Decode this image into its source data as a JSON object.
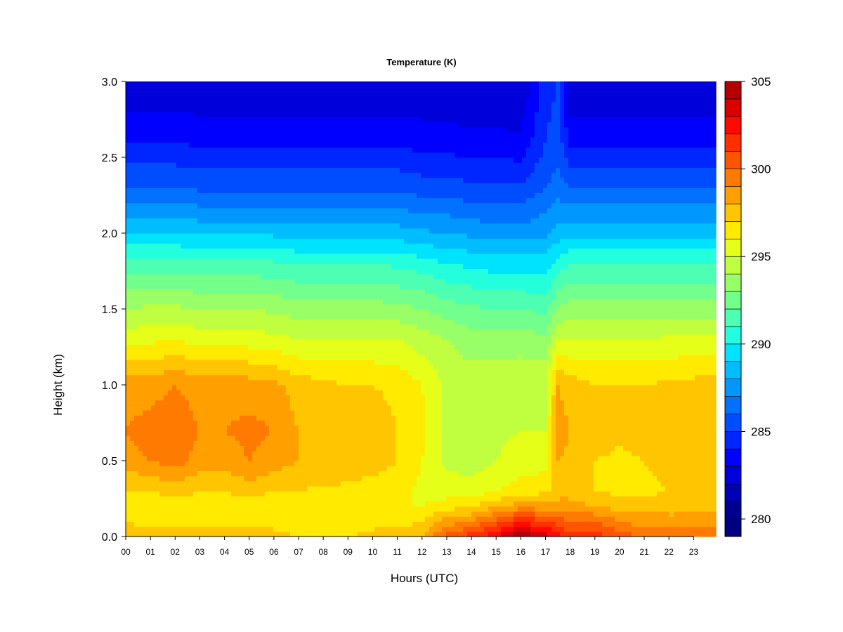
{
  "chart_data": {
    "type": "heatmap",
    "title": "Temperature (K)",
    "xlabel": "Hours (UTC)",
    "ylabel": "Height (km)",
    "xlim": [
      0,
      23.9
    ],
    "ylim": [
      0,
      3.0
    ],
    "x_ticks": [
      "00",
      "01",
      "02",
      "03",
      "04",
      "05",
      "06",
      "07",
      "08",
      "09",
      "10",
      "11",
      "12",
      "13",
      "14",
      "15",
      "16",
      "17",
      "18",
      "19",
      "20",
      "21",
      "22",
      "23"
    ],
    "y_ticks": [
      "0.0",
      "0.5",
      "1.0",
      "1.5",
      "2.0",
      "2.5",
      "3.0"
    ],
    "colorbar": {
      "min": 279,
      "max": 305,
      "step": 1,
      "tick_values": [
        280,
        285,
        290,
        295,
        300,
        305
      ],
      "tick_labels": [
        "280",
        "285",
        "290",
        "295",
        "300",
        "305"
      ],
      "colors": [
        "#000080",
        "#00008f",
        "#0000b4",
        "#0000da",
        "#0000ff",
        "#0026ff",
        "#004cff",
        "#0072ff",
        "#0097ff",
        "#00bdff",
        "#00e3ff",
        "#23ffdc",
        "#4cffb3",
        "#73ff8c",
        "#99ff66",
        "#c0ff3f",
        "#e6ff19",
        "#ffea00",
        "#ffc500",
        "#ff9f00",
        "#ff7a00",
        "#ff5400",
        "#ff2f00",
        "#ff0900",
        "#da0000",
        "#b40000",
        "#8f0000"
      ]
    },
    "heights_km": [
      0.0,
      0.1,
      0.2,
      0.3,
      0.5,
      0.7,
      1.0,
      1.3,
      1.5,
      1.8,
      2.0,
      2.3,
      2.6,
      3.0
    ],
    "profiles": [
      {
        "hour": 0,
        "temps": [
          298.0,
          297.0,
          296.5,
          297.0,
          298.5,
          299.0,
          298.5,
          295.5,
          294.0,
          291.5,
          289.0,
          286.0,
          284.0,
          282.0
        ]
      },
      {
        "hour": 1,
        "temps": [
          297.5,
          296.5,
          296.0,
          297.0,
          299.0,
          299.5,
          298.5,
          295.8,
          294.2,
          291.5,
          289.0,
          286.0,
          284.0,
          282.0
        ]
      },
      {
        "hour": 2,
        "temps": [
          297.5,
          296.5,
          296.5,
          297.5,
          299.5,
          299.8,
          299.0,
          296.0,
          294.2,
          291.5,
          289.0,
          286.0,
          284.0,
          282.0
        ]
      },
      {
        "hour": 3,
        "temps": [
          297.5,
          296.5,
          296.0,
          297.0,
          298.5,
          299.0,
          298.5,
          295.5,
          294.0,
          291.3,
          288.8,
          285.8,
          283.8,
          282.0
        ]
      },
      {
        "hour": 4,
        "temps": [
          297.5,
          296.5,
          296.0,
          297.0,
          298.5,
          299.0,
          298.5,
          295.5,
          294.0,
          291.3,
          288.8,
          285.8,
          283.8,
          282.0
        ]
      },
      {
        "hour": 5,
        "temps": [
          297.5,
          296.8,
          296.5,
          297.5,
          299.0,
          299.3,
          298.5,
          295.5,
          294.0,
          291.3,
          288.8,
          285.8,
          283.8,
          282.0
        ]
      },
      {
        "hour": 6,
        "temps": [
          297.5,
          296.5,
          296.0,
          297.0,
          298.5,
          299.0,
          298.3,
          295.3,
          293.8,
          291.2,
          288.8,
          285.8,
          283.8,
          282.0
        ]
      },
      {
        "hour": 7,
        "temps": [
          297.0,
          296.0,
          296.0,
          297.0,
          298.0,
          298.0,
          297.5,
          295.0,
          293.5,
          291.0,
          288.5,
          285.8,
          283.8,
          282.0
        ]
      },
      {
        "hour": 8,
        "temps": [
          297.0,
          296.0,
          296.0,
          296.8,
          297.8,
          298.0,
          297.3,
          295.0,
          293.5,
          291.0,
          288.5,
          285.8,
          283.8,
          282.0
        ]
      },
      {
        "hour": 9,
        "temps": [
          297.0,
          296.0,
          296.0,
          296.8,
          297.5,
          297.8,
          297.0,
          295.0,
          293.5,
          291.0,
          288.5,
          285.8,
          283.8,
          282.0
        ]
      },
      {
        "hour": 10,
        "temps": [
          297.5,
          296.5,
          296.0,
          296.5,
          297.5,
          297.5,
          297.0,
          295.0,
          293.5,
          291.0,
          288.5,
          285.8,
          283.8,
          282.0
        ]
      },
      {
        "hour": 11,
        "temps": [
          297.5,
          296.5,
          296.0,
          296.3,
          297.0,
          297.0,
          296.8,
          295.0,
          293.3,
          290.8,
          288.5,
          285.8,
          283.8,
          282.0
        ]
      },
      {
        "hour": 12,
        "temps": [
          298.0,
          297.0,
          296.0,
          295.8,
          296.0,
          296.2,
          296.0,
          294.5,
          293.0,
          290.5,
          288.2,
          285.5,
          283.6,
          282.0
        ]
      },
      {
        "hour": 13,
        "temps": [
          300.5,
          298.5,
          296.5,
          295.5,
          294.8,
          294.8,
          294.8,
          294.0,
          292.5,
          290.0,
          288.0,
          285.5,
          283.5,
          282.0
        ]
      },
      {
        "hour": 14,
        "temps": [
          301.5,
          299.0,
          297.0,
          295.5,
          294.5,
          294.5,
          294.5,
          293.5,
          292.2,
          289.8,
          287.8,
          285.2,
          283.3,
          282.0
        ]
      },
      {
        "hour": 15,
        "temps": [
          303.0,
          300.5,
          297.8,
          296.0,
          295.0,
          294.8,
          294.6,
          293.5,
          292.0,
          289.5,
          287.5,
          285.2,
          283.3,
          282.0
        ]
      },
      {
        "hour": 16,
        "temps": [
          305.0,
          302.0,
          298.5,
          296.5,
          295.5,
          295.0,
          294.8,
          293.5,
          292.0,
          289.5,
          287.5,
          285.2,
          283.2,
          282.0
        ]
      },
      {
        "hour": 17,
        "temps": [
          303.5,
          301.0,
          298.5,
          296.8,
          295.5,
          295.0,
          294.8,
          293.3,
          291.8,
          289.5,
          287.8,
          286.0,
          285.0,
          284.5
        ]
      },
      {
        "hour": 17.5,
        "temps": [
          302.5,
          300.5,
          298.5,
          297.5,
          298.0,
          298.5,
          298.0,
          295.0,
          293.0,
          290.5,
          288.5,
          286.5,
          285.5,
          285.0
        ]
      },
      {
        "hour": 18,
        "temps": [
          301.5,
          300.0,
          298.5,
          297.5,
          297.8,
          298.0,
          297.5,
          295.0,
          293.5,
          291.0,
          288.7,
          286.0,
          283.8,
          282.0
        ]
      },
      {
        "hour": 19,
        "temps": [
          301.5,
          300.0,
          298.0,
          297.0,
          297.0,
          297.5,
          297.0,
          295.0,
          293.5,
          291.0,
          288.7,
          286.0,
          283.8,
          282.0
        ]
      },
      {
        "hour": 20,
        "temps": [
          300.5,
          299.0,
          297.5,
          296.8,
          296.8,
          297.2,
          297.0,
          295.0,
          293.5,
          291.0,
          288.7,
          286.0,
          283.8,
          282.0
        ]
      },
      {
        "hour": 21,
        "temps": [
          300.0,
          298.5,
          297.5,
          296.8,
          297.0,
          297.5,
          297.0,
          295.0,
          293.5,
          291.0,
          288.7,
          286.0,
          283.8,
          282.0
        ]
      },
      {
        "hour": 22,
        "temps": [
          300.0,
          298.5,
          297.5,
          297.0,
          297.3,
          297.8,
          297.2,
          295.2,
          293.5,
          291.0,
          288.7,
          286.0,
          283.8,
          282.0
        ]
      },
      {
        "hour": 23.9,
        "temps": [
          300.0,
          298.5,
          297.5,
          297.0,
          297.5,
          298.0,
          297.5,
          295.2,
          293.5,
          291.0,
          288.7,
          286.0,
          283.8,
          282.0
        ]
      }
    ],
    "grid": false,
    "legend": "right"
  }
}
